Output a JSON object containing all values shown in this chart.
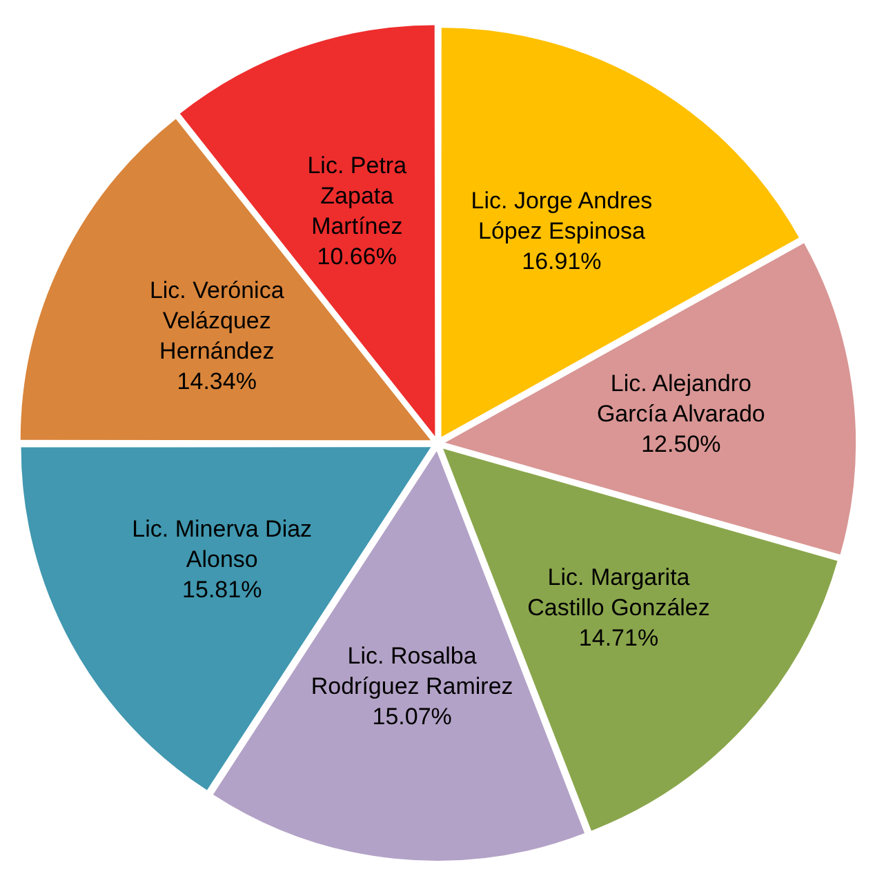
{
  "chart_data": {
    "type": "pie",
    "categories": [
      "Lic. Jorge Andres López Espinosa",
      "Lic. Alejandro García Alvarado",
      "Lic. Margarita Castillo González",
      "Lic. Rosalba Rodríguez Ramirez",
      "Lic. Minerva Diaz Alonso",
      "Lic. Verónica Velázquez Hernández",
      "Lic. Petra Zapata Martínez"
    ],
    "values": [
      16.91,
      12.5,
      14.71,
      15.07,
      15.81,
      14.34,
      10.66
    ],
    "value_labels": [
      "16.91%",
      "12.50%",
      "14.71%",
      "15.07%",
      "15.81%",
      "14.34%",
      "10.66%"
    ],
    "colors": [
      "#ffc000",
      "#d99694",
      "#8aa64c",
      "#b3a2c7",
      "#4198b0",
      "#d9853b",
      "#ee2d2d"
    ],
    "legend": false
  }
}
